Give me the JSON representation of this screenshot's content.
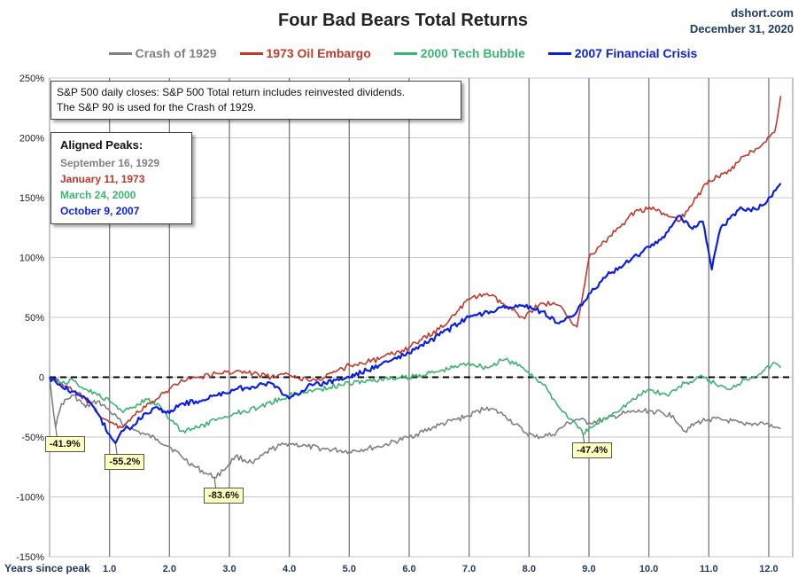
{
  "header": {
    "title": "Four Bad Bears Total Returns",
    "brand": "dshort.com",
    "date": "December 31, 2020"
  },
  "colors": {
    "crash1929": "#808080",
    "oil1973": "#c0392b",
    "tech2000": "#3cb371",
    "fin2007": "#0a1fe0"
  },
  "notes": {
    "line1": "S&P 500 daily closes: S&P 500 Total return includes reinvested dividends.",
    "line2": "The S&P 90 is used for the Crash of 1929."
  },
  "peaks": {
    "header": "Aligned Peaks:",
    "items": [
      "September 16, 1929",
      "January 11, 1973",
      "March 24, 2000",
      "October 9, 2007"
    ]
  },
  "chart_data": {
    "type": "line",
    "title": "Four Bad Bears Total Returns",
    "xlabel": "Years since peak",
    "ylabel": "",
    "xlim": [
      0,
      12.4
    ],
    "ylim": [
      -150,
      250
    ],
    "x_ticks": [
      "1.0",
      "2.0",
      "3.0",
      "4.0",
      "5.0",
      "6.0",
      "7.0",
      "8.0",
      "9.0",
      "10.0",
      "11.0",
      "12.0"
    ],
    "y_ticks": [
      "250%",
      "200%",
      "150%",
      "100%",
      "50%",
      "0",
      "-50%",
      "-100%",
      "-150%"
    ],
    "y_tick_values": [
      250,
      200,
      150,
      100,
      50,
      0,
      -50,
      -100,
      -150
    ],
    "grid": true,
    "legend_position": "top",
    "reference_line": 0,
    "series": [
      {
        "name": "Crash of 1929",
        "x": [
          0,
          0.1,
          0.2,
          0.4,
          0.6,
          0.8,
          1.0,
          1.2,
          1.4,
          1.6,
          1.8,
          2.0,
          2.2,
          2.4,
          2.6,
          2.75,
          2.9,
          3.1,
          3.4,
          3.7,
          4.0,
          4.3,
          4.6,
          5.0,
          5.5,
          6.0,
          6.5,
          7.0,
          7.3,
          7.6,
          7.9,
          8.1,
          8.4,
          8.6,
          8.8,
          9.0,
          9.3,
          9.6,
          10.0,
          10.4,
          10.6,
          10.8,
          11.0,
          11.3,
          11.6,
          11.9,
          12.1,
          12.2
        ],
        "values": [
          0,
          -41.9,
          -22,
          -15,
          -25,
          -20,
          -28,
          -38,
          -44,
          -48,
          -52,
          -58,
          -66,
          -74,
          -80,
          -83.6,
          -78,
          -66,
          -72,
          -60,
          -55,
          -58,
          -60,
          -62,
          -58,
          -50,
          -40,
          -32,
          -25,
          -32,
          -45,
          -50,
          -48,
          -40,
          -35,
          -38,
          -35,
          -30,
          -28,
          -32,
          -45,
          -38,
          -35,
          -36,
          -40,
          -38,
          -42,
          -43
        ]
      },
      {
        "name": "1973 Oil Embargo",
        "x": [
          0,
          0.2,
          0.4,
          0.6,
          0.8,
          1.0,
          1.2,
          1.4,
          1.6,
          1.8,
          2.0,
          2.2,
          2.5,
          2.8,
          3.1,
          3.4,
          3.7,
          4.0,
          4.3,
          4.6,
          5.0,
          5.5,
          6.0,
          6.5,
          6.8,
          7.0,
          7.3,
          7.6,
          7.9,
          8.2,
          8.5,
          8.8,
          8.9,
          9.0,
          9.2,
          9.5,
          9.8,
          10.1,
          10.5,
          10.8,
          11.0,
          11.3,
          11.6,
          11.9,
          12.1,
          12.2
        ],
        "values": [
          0,
          -5,
          -12,
          -18,
          -30,
          -38,
          -42,
          -32,
          -25,
          -18,
          -10,
          -2,
          0,
          3,
          5,
          3,
          0,
          2,
          -2,
          0,
          10,
          15,
          25,
          40,
          55,
          65,
          70,
          60,
          50,
          62,
          60,
          42,
          70,
          100,
          110,
          125,
          140,
          140,
          130,
          150,
          165,
          170,
          185,
          195,
          205,
          235
        ]
      },
      {
        "name": "2000 Tech Bubble",
        "x": [
          0,
          0.2,
          0.4,
          0.6,
          0.8,
          1.0,
          1.2,
          1.4,
          1.6,
          1.8,
          2.0,
          2.2,
          2.5,
          2.8,
          3.1,
          3.5,
          4.0,
          4.5,
          5.0,
          5.5,
          6.0,
          6.5,
          7.0,
          7.3,
          7.6,
          7.9,
          8.1,
          8.3,
          8.5,
          8.7,
          8.9,
          9.1,
          9.4,
          9.7,
          10.0,
          10.3,
          10.6,
          10.9,
          11.1,
          11.3,
          11.6,
          11.9,
          12.1,
          12.2
        ],
        "values": [
          0,
          -5,
          -3,
          -10,
          -15,
          -20,
          -28,
          -25,
          -18,
          -22,
          -35,
          -45,
          -42,
          -35,
          -30,
          -25,
          -15,
          -10,
          -5,
          -2,
          0,
          5,
          12,
          8,
          15,
          8,
          0,
          -10,
          -25,
          -35,
          -47.4,
          -40,
          -30,
          -20,
          -10,
          -15,
          -5,
          0,
          -5,
          -10,
          -2,
          5,
          12,
          8
        ]
      },
      {
        "name": "2007 Financial Crisis",
        "x": [
          0,
          0.2,
          0.4,
          0.6,
          0.8,
          1.0,
          1.1,
          1.2,
          1.4,
          1.6,
          1.8,
          2.0,
          2.2,
          2.5,
          2.8,
          3.1,
          3.4,
          3.7,
          4.0,
          4.3,
          4.6,
          5.0,
          5.5,
          6.0,
          6.5,
          7.0,
          7.3,
          7.6,
          7.9,
          8.2,
          8.5,
          8.8,
          9.0,
          9.3,
          9.6,
          9.9,
          10.2,
          10.5,
          10.7,
          10.9,
          11.05,
          11.2,
          11.5,
          11.8,
          12.0,
          12.2
        ],
        "values": [
          0,
          -8,
          -12,
          -18,
          -30,
          -48,
          -55.2,
          -45,
          -40,
          -30,
          -25,
          -30,
          -22,
          -20,
          -15,
          -10,
          -8,
          -5,
          -18,
          -8,
          -5,
          0,
          10,
          20,
          35,
          50,
          55,
          58,
          60,
          55,
          45,
          55,
          70,
          85,
          95,
          105,
          115,
          135,
          125,
          130,
          90,
          125,
          140,
          140,
          150,
          162
        ]
      }
    ],
    "annotations": [
      {
        "text": "-41.9%",
        "x": 0.1,
        "y": -41.9
      },
      {
        "text": "-55.2%",
        "x": 1.1,
        "y": -55.2
      },
      {
        "text": "-83.6%",
        "x": 2.75,
        "y": -83.6
      },
      {
        "text": "-47.4%",
        "x": 8.9,
        "y": -47.4
      }
    ]
  }
}
